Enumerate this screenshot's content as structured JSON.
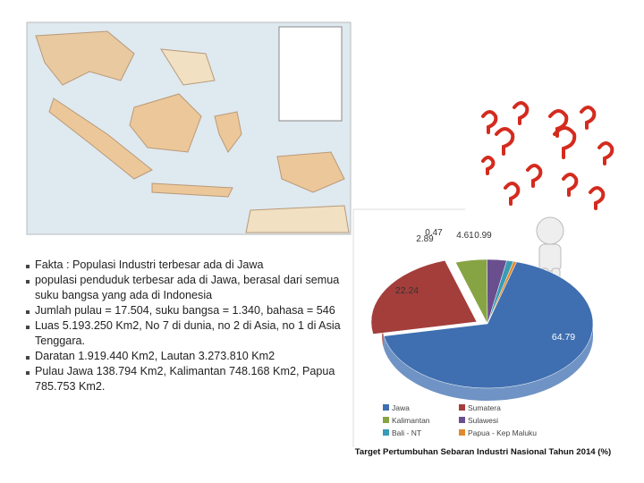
{
  "bullets": [
    "Fakta : Populasi Industri terbesar ada di Jawa",
    "populasi penduduk terbesar ada di Jawa, berasal dari semua suku bangsa yang ada di Indonesia",
    "Jumlah pulau = 17.504, suku bangsa = 1.340, bahasa = 546",
    "Luas 5.193.250 Km2, No 7 di dunia, no 2 di Asia, no 1 di Asia Tenggara.",
    "Daratan 1.919.440 Km2, Lautan 3.273.810 Km2",
    "Pulau Jawa 138.794 Km2, Kalimantan 748.168 Km2, Papua 785.753 Km2."
  ],
  "chart_data": {
    "type": "pie",
    "title": "Target Pertumbuhan Sebaran Industri Nasional Tahun 2014 (%)",
    "categories": [
      "Jawa",
      "Sumatera",
      "Kalimantan",
      "Sulawesi",
      "Bali - NT",
      "Papua - Kep Maluku"
    ],
    "values": [
      64.79,
      22.24,
      4.61,
      2.89,
      0.99,
      0.47
    ],
    "colors": [
      "#3f6fb0",
      "#a33e3b",
      "#86a443",
      "#6a4f8f",
      "#3a9bb5",
      "#e08a2e"
    ]
  }
}
